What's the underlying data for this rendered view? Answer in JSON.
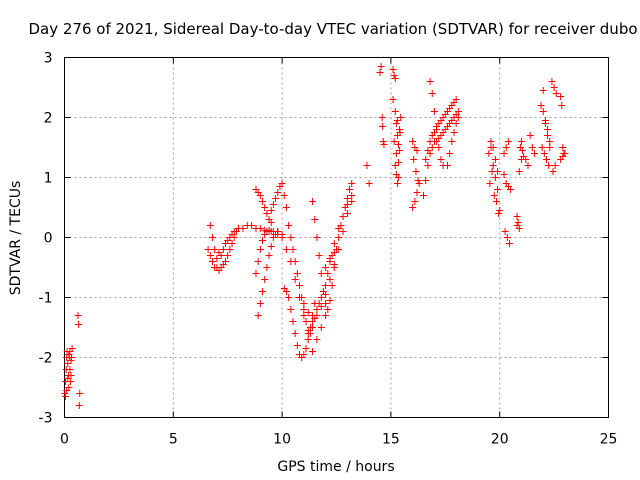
{
  "chart_data": {
    "type": "scatter",
    "title": "Day 276 of 2021, Sidereal Day-to-day VTEC variation (SDTVAR) for receiver dubo",
    "xlabel": "GPS time / hours",
    "ylabel": "SDTVAR / TECUs",
    "xlim": [
      0,
      25
    ],
    "ylim": [
      -3,
      3
    ],
    "xticks": [
      "0",
      "5",
      "10",
      "15",
      "20",
      "25"
    ],
    "yticks": [
      "-3",
      "-2",
      "-1",
      "0",
      "1",
      "2",
      "3"
    ],
    "grid": true,
    "marker": "+",
    "color": "#ff0000",
    "series": [
      {
        "name": "SDTVAR",
        "x": [
          0.02,
          0.05,
          0.08,
          0.1,
          0.12,
          0.15,
          0.18,
          0.2,
          0.22,
          0.25,
          0.28,
          0.3,
          0.32,
          0.35,
          0.05,
          0.1,
          0.15,
          0.2,
          0.25,
          0.3,
          0.62,
          0.65,
          0.68,
          0.7,
          6.6,
          6.7,
          6.8,
          6.9,
          7.0,
          7.1,
          7.2,
          7.3,
          7.4,
          7.5,
          7.6,
          7.7,
          7.8,
          7.9,
          8.0,
          8.2,
          8.4,
          8.6,
          8.8,
          9.0,
          9.2,
          9.4,
          9.6,
          9.8,
          10.0,
          6.7,
          6.8,
          6.9,
          7.0,
          7.1,
          7.2,
          7.3,
          7.4,
          7.5,
          7.6,
          7.7,
          7.8,
          8.9,
          9.0,
          9.1,
          9.2,
          9.3,
          9.4,
          9.5,
          9.6,
          9.7,
          9.8,
          8.8,
          8.9,
          9.0,
          9.1,
          9.2,
          9.3,
          9.4,
          9.5,
          9.5,
          9.6,
          9.7,
          9.8,
          9.9,
          10.0,
          10.1,
          10.2,
          10.3,
          10.4,
          8.8,
          8.9,
          9.0,
          9.1,
          9.2,
          9.3,
          9.4,
          9.5,
          9.8,
          10.0,
          10.2,
          10.4,
          10.6,
          10.8,
          11.0,
          11.2,
          11.4,
          11.6,
          11.8,
          12.0,
          10.1,
          10.2,
          10.3,
          10.4,
          10.5,
          10.6,
          10.7,
          10.8,
          10.9,
          11.0,
          11.1,
          11.2,
          11.3,
          11.4,
          11.5,
          10.5,
          10.6,
          10.7,
          10.8,
          10.9,
          11.0,
          11.1,
          11.2,
          11.3,
          11.4,
          11.5,
          11.6,
          11.7,
          11.8,
          11.9,
          12.0,
          12.1,
          12.2,
          12.3,
          12.4,
          11.0,
          11.2,
          11.4,
          11.6,
          11.8,
          12.0,
          12.2,
          12.4,
          12.6,
          12.8,
          13.0,
          13.2,
          11.4,
          11.5,
          11.6,
          11.7,
          11.8,
          11.9,
          12.0,
          12.1,
          12.2,
          12.3,
          12.4,
          12.5,
          12.6,
          12.7,
          12.8,
          12.9,
          13.0,
          13.1,
          13.2,
          12.0,
          12.2,
          12.4,
          12.6,
          12.8,
          13.0,
          13.2,
          13.9,
          14.0,
          14.5,
          14.55,
          14.6,
          14.62,
          14.65,
          14.68,
          15.1,
          15.15,
          15.2,
          15.25,
          15.3,
          15.35,
          15.4,
          15.42,
          15.45,
          15.2,
          15.25,
          15.3,
          15.35,
          15.1,
          15.2,
          15.3,
          15.4,
          15.15,
          15.25,
          15.35,
          16.0,
          16.1,
          16.2,
          16.3,
          16.05,
          16.15,
          16.25,
          16.0,
          16.1,
          16.2,
          16.5,
          16.6,
          16.7,
          16.8,
          16.9,
          17.0,
          17.1,
          17.2,
          17.3,
          17.4,
          17.5,
          17.6,
          17.7,
          17.8,
          17.9,
          18.0,
          18.1,
          16.6,
          16.7,
          16.8,
          16.9,
          17.0,
          17.1,
          17.2,
          17.3,
          17.4,
          17.5,
          17.6,
          17.7,
          17.8,
          17.9,
          18.0,
          16.8,
          16.9,
          17.0,
          17.1,
          17.2,
          17.3,
          17.4,
          17.6,
          17.7,
          17.8,
          17.9,
          18.0,
          18.1,
          19.5,
          19.6,
          19.7,
          19.8,
          19.9,
          20.0,
          19.55,
          19.65,
          19.75,
          19.85,
          19.95,
          19.6,
          19.7,
          19.8,
          19.9,
          20.2,
          20.3,
          20.4,
          20.5,
          20.25,
          20.35,
          20.45,
          20.2,
          20.3,
          20.4,
          20.8,
          20.85,
          20.9,
          20.95,
          21.0,
          20.8,
          20.9,
          21.0,
          21.05,
          21.1,
          21.2,
          21.3,
          21.4,
          21.5,
          21.6,
          21.9,
          22.0,
          22.1,
          22.2,
          22.3,
          21.95,
          22.05,
          22.15,
          22.25,
          22.0,
          22.1,
          22.2,
          22.3,
          22.4,
          22.5,
          22.6,
          22.45,
          22.55,
          22.8,
          22.85,
          22.9,
          22.95,
          22.8,
          22.9,
          23.0
        ],
        "y": [
          -2.6,
          -2.4,
          -2.2,
          -2.0,
          -1.9,
          -2.1,
          -2.3,
          -1.95,
          -2.0,
          -1.9,
          -2.4,
          -2.3,
          -2.0,
          -1.85,
          -2.65,
          -2.55,
          -2.35,
          -2.5,
          -2.2,
          -2.05,
          -1.3,
          -1.45,
          -2.8,
          -2.6,
          -0.2,
          -0.3,
          -0.4,
          -0.5,
          -0.35,
          -0.25,
          -0.3,
          -0.2,
          -0.1,
          -0.05,
          0.0,
          0.05,
          0.1,
          0.1,
          0.15,
          0.15,
          0.2,
          0.2,
          0.15,
          0.15,
          0.12,
          0.1,
          0.1,
          0.05,
          0.0,
          0.2,
          0.0,
          -0.2,
          -0.5,
          -0.55,
          -0.5,
          -0.45,
          -0.4,
          -0.3,
          -0.2,
          -0.1,
          0.0,
          -1.3,
          -1.1,
          -0.9,
          -0.7,
          -0.5,
          -0.3,
          -0.15,
          0.0,
          0.05,
          0.1,
          0.8,
          0.75,
          0.7,
          0.6,
          0.5,
          0.4,
          0.3,
          0.25,
          0.45,
          0.55,
          0.65,
          0.75,
          0.85,
          0.9,
          0.7,
          0.5,
          0.2,
          0.0,
          -0.6,
          -0.4,
          -0.2,
          -0.05,
          0.05,
          0.1,
          0.12,
          0.1,
          0.1,
          0.05,
          -0.2,
          -0.4,
          -0.7,
          -1.0,
          -1.3,
          -1.6,
          -1.9,
          -1.7,
          -1.5,
          -1.3,
          -0.85,
          -0.9,
          -1.0,
          -1.2,
          -1.4,
          -1.6,
          -1.8,
          -1.95,
          -2.0,
          -1.95,
          -1.85,
          -1.7,
          -1.5,
          -1.3,
          -1.1,
          -0.2,
          -0.4,
          -0.6,
          -0.8,
          -1.0,
          -1.2,
          -1.4,
          -1.55,
          -1.6,
          -1.5,
          -1.35,
          -1.2,
          -1.1,
          -1.0,
          -0.9,
          -0.8,
          -0.6,
          -0.4,
          -0.3,
          -0.25,
          -1.1,
          -1.25,
          -1.4,
          -1.3,
          -1.15,
          -0.95,
          -0.7,
          -0.45,
          -0.2,
          0.1,
          0.4,
          0.6,
          0.6,
          0.3,
          0.0,
          -0.3,
          -0.6,
          -0.9,
          -1.1,
          -1.2,
          -1.05,
          -0.8,
          -0.5,
          -0.2,
          0.0,
          0.2,
          0.35,
          0.5,
          0.65,
          0.8,
          0.9,
          -0.5,
          -0.35,
          -0.1,
          0.15,
          0.35,
          0.55,
          0.7,
          1.2,
          0.9,
          2.75,
          2.85,
          2.0,
          1.85,
          1.6,
          1.55,
          2.8,
          2.7,
          2.65,
          1.9,
          1.7,
          1.55,
          1.45,
          1.75,
          2.0,
          1.2,
          1.05,
          0.9,
          1.0,
          2.3,
          2.1,
          1.95,
          1.8,
          1.6,
          1.4,
          1.25,
          0.5,
          0.6,
          0.75,
          0.9,
          1.3,
          1.1,
          0.95,
          1.6,
          1.5,
          1.45,
          0.7,
          0.95,
          1.2,
          1.4,
          1.5,
          1.6,
          1.6,
          1.65,
          1.7,
          1.75,
          1.8,
          1.85,
          1.9,
          1.95,
          2.0,
          2.05,
          2.1,
          1.3,
          1.45,
          1.6,
          1.7,
          1.75,
          1.85,
          1.9,
          1.95,
          2.0,
          2.05,
          2.1,
          2.15,
          2.2,
          2.25,
          2.3,
          2.6,
          2.4,
          2.1,
          1.8,
          1.5,
          1.3,
          1.2,
          1.2,
          1.4,
          1.6,
          1.75,
          1.9,
          2.0,
          1.4,
          1.5,
          1.2,
          1.0,
          0.8,
          0.45,
          0.9,
          1.1,
          0.7,
          0.6,
          0.4,
          1.6,
          1.5,
          1.3,
          1.1,
          1.05,
          0.9,
          0.85,
          0.8,
          0.1,
          0.0,
          -0.1,
          1.4,
          1.5,
          1.6,
          0.35,
          0.25,
          0.15,
          1.5,
          1.3,
          0.2,
          1.1,
          1.6,
          1.45,
          1.35,
          1.3,
          1.2,
          1.7,
          1.5,
          1.4,
          2.2,
          2.1,
          1.9,
          1.8,
          1.6,
          1.5,
          1.4,
          1.3,
          1.2,
          2.45,
          1.95,
          1.7,
          1.5,
          2.6,
          2.5,
          2.4,
          1.1,
          1.2,
          2.35,
          2.2,
          1.5,
          1.4,
          1.3,
          1.35,
          1.4
        ]
      }
    ]
  }
}
